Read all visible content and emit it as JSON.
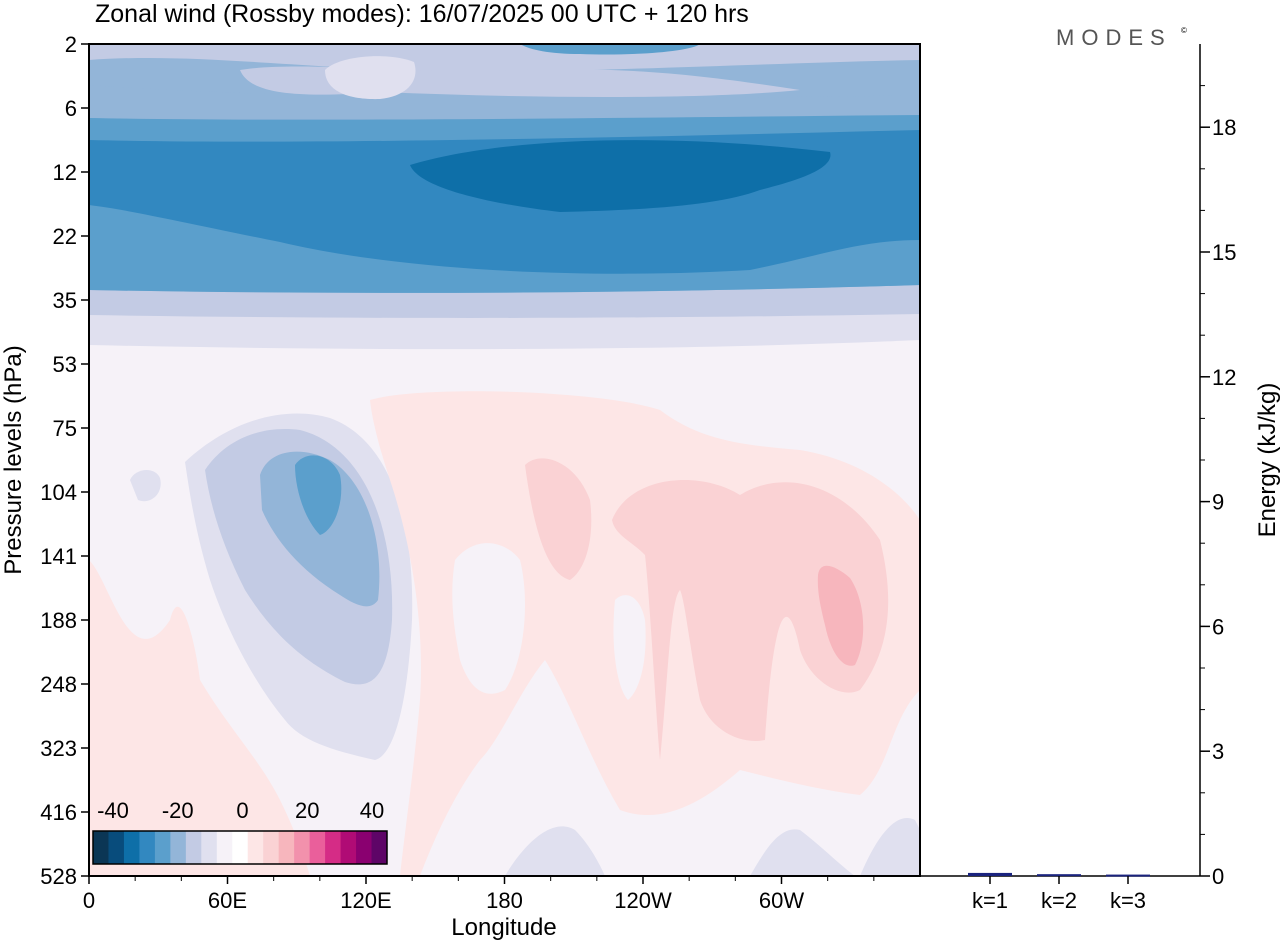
{
  "header": {
    "title": "Zonal wind (Rossby modes):  16/07/2025  00 UTC  + 120 hrs",
    "logo": "MODES",
    "logo_mark": "©"
  },
  "chart_data": [
    {
      "type": "heatmap",
      "title": "Zonal wind (Rossby modes):  16/07/2025  00 UTC  + 120 hrs",
      "xlabel": "Longitude",
      "ylabel": "Pressure levels (hPa)",
      "x_ticks": [
        "0",
        "60E",
        "120E",
        "180",
        "120W",
        "60W"
      ],
      "y_ticks": [
        "2",
        "6",
        "12",
        "22",
        "35",
        "53",
        "75",
        "104",
        "141",
        "188",
        "248",
        "323",
        "416",
        "528"
      ],
      "y_scale": "log",
      "colorbar": {
        "labels": [
          "-40",
          "-20",
          "0",
          "20",
          "40"
        ],
        "colors": [
          "#0b3655",
          "#084c7c",
          "#0e6fa8",
          "#3288c0",
          "#5b9fcc",
          "#93b5d8",
          "#c3cbe4",
          "#e0e0ef",
          "#f6f2f8",
          "#ffffff",
          "#fde6e6",
          "#fad2d4",
          "#f7b6bd",
          "#f291ac",
          "#ea5f9b",
          "#d52c86",
          "#b00b75",
          "#8a0070",
          "#5e0567"
        ]
      }
    },
    {
      "type": "bar",
      "categories": [
        "k=1",
        "k=2",
        "k=3"
      ],
      "values": [
        0.05,
        0.02,
        0.01
      ],
      "ylabel": "Energy (kJ/kg)",
      "ylim": [
        0,
        20
      ],
      "y_ticks": [
        "0",
        "3",
        "6",
        "9",
        "12",
        "15",
        "18"
      ],
      "bar_color": "#1a237e"
    }
  ]
}
